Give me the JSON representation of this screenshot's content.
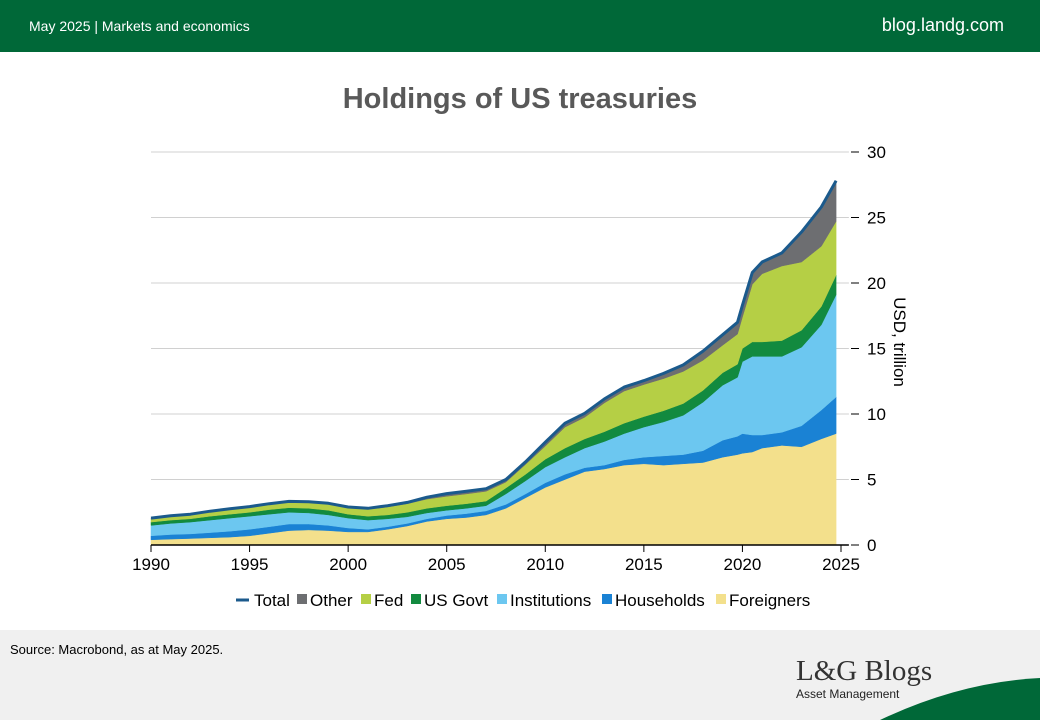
{
  "header": {
    "left_text": "May 2025 | Markets and economics",
    "right_text": "blog.landg.com"
  },
  "footer": {
    "source": "Source: Macrobond, as at May 2025.",
    "logo_main": "L&G Blogs",
    "logo_sub": "Asset Management"
  },
  "colors": {
    "header_bg": "#006838",
    "total": "#1b5a8c",
    "other": "#6d6e71",
    "fed": "#b5cf45",
    "us_govt": "#128a3f",
    "institutions": "#6cc7f0",
    "households": "#1a82d4",
    "foreigners": "#f3e08c"
  },
  "chart_data": {
    "type": "area",
    "title": "Holdings of US treasuries",
    "ylabel": "USD, trillion",
    "ylabel_position": "right",
    "xlim": [
      1990,
      2025.3
    ],
    "ylim": [
      0,
      30
    ],
    "x_ticks": [
      1990,
      1995,
      2000,
      2005,
      2010,
      2015,
      2020,
      2025
    ],
    "y_ticks": [
      0,
      5,
      10,
      15,
      20,
      25,
      30
    ],
    "grid": true,
    "legend_position": "bottom",
    "stacked": true,
    "x": [
      1990,
      1991,
      1992,
      1993,
      1994,
      1995,
      1996,
      1997,
      1998,
      1999,
      2000,
      2001,
      2002,
      2003,
      2004,
      2005,
      2006,
      2007,
      2008,
      2009,
      2010,
      2011,
      2012,
      2013,
      2014,
      2015,
      2016,
      2017,
      2018,
      2019,
      2019.75,
      2020,
      2020.5,
      2021,
      2022,
      2023,
      2024,
      2024.75
    ],
    "series": [
      {
        "name": "Foreigners",
        "key": "foreigners",
        "values": [
          0.4,
          0.45,
          0.5,
          0.55,
          0.6,
          0.7,
          0.9,
          1.1,
          1.15,
          1.1,
          1.0,
          1.0,
          1.2,
          1.45,
          1.8,
          2.0,
          2.1,
          2.3,
          2.8,
          3.6,
          4.4,
          5.0,
          5.6,
          5.8,
          6.1,
          6.2,
          6.1,
          6.2,
          6.3,
          6.7,
          6.9,
          7.0,
          7.1,
          7.4,
          7.6,
          7.5,
          8.1,
          8.5
        ]
      },
      {
        "name": "Households",
        "key": "households",
        "values": [
          0.3,
          0.35,
          0.35,
          0.4,
          0.45,
          0.5,
          0.5,
          0.5,
          0.45,
          0.4,
          0.3,
          0.2,
          0.2,
          0.2,
          0.2,
          0.25,
          0.3,
          0.3,
          0.3,
          0.3,
          0.35,
          0.4,
          0.3,
          0.3,
          0.4,
          0.5,
          0.7,
          0.7,
          0.9,
          1.3,
          1.4,
          1.5,
          1.3,
          1.0,
          1.0,
          1.6,
          2.2,
          2.8
        ]
      },
      {
        "name": "Institutions",
        "key": "institutions",
        "values": [
          0.8,
          0.85,
          0.9,
          0.95,
          1.0,
          1.0,
          0.95,
          0.9,
          0.85,
          0.8,
          0.75,
          0.7,
          0.6,
          0.5,
          0.45,
          0.4,
          0.4,
          0.4,
          0.8,
          1.0,
          1.2,
          1.3,
          1.5,
          1.8,
          2.0,
          2.3,
          2.6,
          3.0,
          3.7,
          4.2,
          4.5,
          5.5,
          6.0,
          6.0,
          5.8,
          6.0,
          6.5,
          7.8
        ]
      },
      {
        "name": "US Govt",
        "key": "us_govt",
        "values": [
          0.25,
          0.25,
          0.25,
          0.3,
          0.3,
          0.3,
          0.35,
          0.35,
          0.35,
          0.35,
          0.3,
          0.3,
          0.3,
          0.35,
          0.35,
          0.35,
          0.35,
          0.35,
          0.45,
          0.5,
          0.6,
          0.7,
          0.7,
          0.75,
          0.8,
          0.8,
          0.85,
          0.9,
          0.9,
          0.95,
          1.0,
          1.0,
          1.1,
          1.1,
          1.2,
          1.3,
          1.4,
          1.5
        ]
      },
      {
        "name": "Fed",
        "key": "fed",
        "values": [
          0.25,
          0.28,
          0.3,
          0.33,
          0.36,
          0.38,
          0.4,
          0.43,
          0.45,
          0.48,
          0.5,
          0.55,
          0.6,
          0.65,
          0.7,
          0.72,
          0.75,
          0.75,
          0.45,
          0.75,
          1.0,
          1.6,
          1.65,
          2.2,
          2.45,
          2.45,
          2.45,
          2.45,
          2.3,
          2.1,
          2.3,
          2.4,
          4.4,
          5.2,
          5.7,
          5.2,
          4.6,
          4.1
        ]
      },
      {
        "name": "Other",
        "key": "other",
        "values": [
          0.05,
          0.05,
          0.05,
          0.05,
          0.05,
          0.05,
          0.05,
          0.05,
          0.05,
          0.05,
          0.05,
          0.05,
          0.1,
          0.1,
          0.15,
          0.2,
          0.2,
          0.2,
          0.2,
          0.2,
          0.3,
          0.3,
          0.3,
          0.3,
          0.3,
          0.3,
          0.4,
          0.5,
          0.7,
          0.8,
          0.9,
          0.9,
          0.9,
          0.9,
          1.0,
          2.3,
          3.0,
          3.1
        ]
      },
      {
        "name": "Total",
        "key": "total",
        "values": [
          2.05,
          2.23,
          2.35,
          2.58,
          2.76,
          2.93,
          3.15,
          3.33,
          3.3,
          3.18,
          2.9,
          2.8,
          3.0,
          3.25,
          3.65,
          3.92,
          4.1,
          4.3,
          5.0,
          6.35,
          7.85,
          9.3,
          10.05,
          11.15,
          12.05,
          12.55,
          13.1,
          13.75,
          14.8,
          16.05,
          17.0,
          18.3,
          20.8,
          21.6,
          22.3,
          23.9,
          25.8,
          27.8
        ]
      }
    ]
  }
}
